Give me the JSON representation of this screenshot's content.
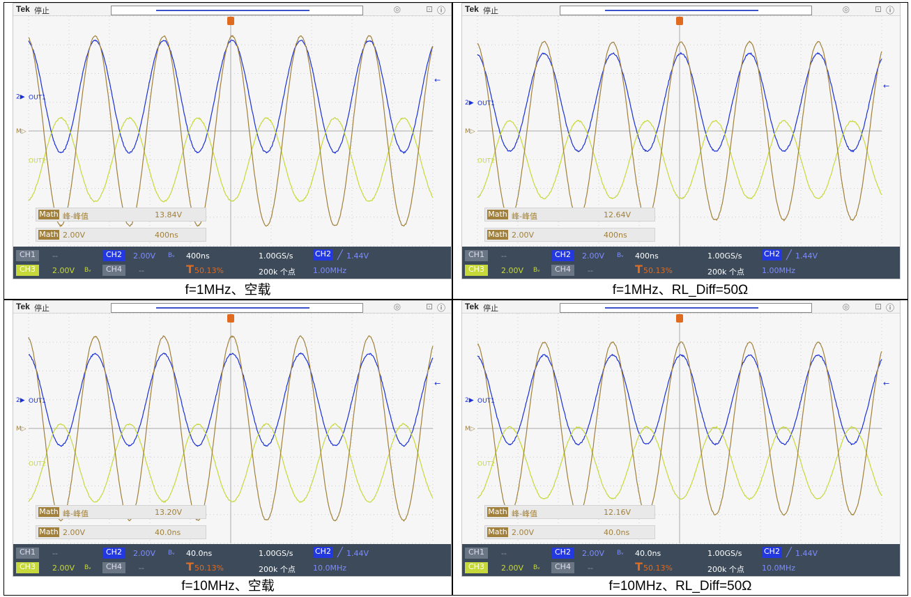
{
  "colors": {
    "ch2": "#1a2fd6",
    "ch3": "#c7d83a",
    "math": "#a0803a",
    "trigger": "#e06b1f"
  },
  "panels": [
    {
      "caption": "f=1MHz、空载",
      "header": {
        "brand": "Tek",
        "state": "停止"
      },
      "math_measure": {
        "tag": "Math",
        "name": "峰-峰值",
        "value": "13.84V"
      },
      "math_scale": {
        "tag": "Math",
        "volt": "2.00V",
        "time": "400ns"
      },
      "status": {
        "ch1": "CH1",
        "ch1_val": "--",
        "ch2": "CH2",
        "ch2_val": "2.00V",
        "bw": "Bᵥ",
        "ch3": "CH3",
        "ch3_val": "2.00V",
        "ch3_bw": "Bᵥ",
        "ch4": "CH4",
        "ch4_val": "--",
        "timebase": "400ns",
        "sample_rate": "1.00GS/s",
        "trig_ch": "CH2",
        "trig_level": "1.44V",
        "trig_pos": "50.13%",
        "record": "200k 个点",
        "freq": "1.00MHz"
      },
      "labels": {
        "out1": "OUT1",
        "out2": "OUT2",
        "ch2_marker": "2",
        "m_marker": "M"
      },
      "chart_data": {
        "type": "line",
        "xlabel": "",
        "ylabel": "",
        "x_range_div": [
          0,
          10
        ],
        "y_range_div": [
          -4,
          4
        ],
        "grid": true,
        "series": [
          {
            "name": "OUT1",
            "cycles": 5.9,
            "amplitude_div": 1.95,
            "offset_div": 1.2,
            "phase_deg": 100
          },
          {
            "name": "OUT2",
            "cycles": 5.9,
            "amplitude_div": 1.45,
            "offset_div": -1.0,
            "phase_deg": -80
          },
          {
            "name": "Math",
            "cycles": 5.9,
            "amplitude_div": 3.3,
            "offset_div": 0.0,
            "phase_deg": 100
          }
        ],
        "measurement": {
          "type": "peak-to-peak",
          "value": 13.84,
          "unit": "V"
        }
      }
    },
    {
      "caption": "f=1MHz、RL_Diff=50Ω",
      "header": {
        "brand": "Tek",
        "state": "停止"
      },
      "math_measure": {
        "tag": "Math",
        "name": "峰-峰值",
        "value": "12.64V"
      },
      "math_scale": {
        "tag": "Math",
        "volt": "2.00V",
        "time": "400ns"
      },
      "status": {
        "ch1": "CH1",
        "ch1_val": "--",
        "ch2": "CH2",
        "ch2_val": "2.00V",
        "bw": "Bᵥ",
        "ch3": "CH3",
        "ch3_val": "2.00V",
        "ch3_bw": "Bᵥ",
        "ch4": "CH4",
        "ch4_val": "--",
        "timebase": "400ns",
        "sample_rate": "1.00GS/s",
        "trig_ch": "CH2",
        "trig_level": "1.44V",
        "trig_pos": "50.13%",
        "record": "200k 个点",
        "freq": "1.00MHz"
      },
      "labels": {
        "out1": "OUT1",
        "out2": "OUT2",
        "ch2_marker": "2",
        "m_marker": "M"
      },
      "chart_data": {
        "type": "line",
        "xlabel": "",
        "ylabel": "",
        "x_range_div": [
          0,
          10
        ],
        "y_range_div": [
          -4,
          4
        ],
        "grid": true,
        "series": [
          {
            "name": "OUT1",
            "cycles": 5.9,
            "amplitude_div": 1.7,
            "offset_div": 1.0,
            "phase_deg": 100
          },
          {
            "name": "OUT2",
            "cycles": 5.9,
            "amplitude_div": 1.35,
            "offset_div": -1.0,
            "phase_deg": -80
          },
          {
            "name": "Math",
            "cycles": 5.9,
            "amplitude_div": 3.1,
            "offset_div": 0.0,
            "phase_deg": 100
          }
        ],
        "measurement": {
          "type": "peak-to-peak",
          "value": 12.64,
          "unit": "V"
        }
      }
    },
    {
      "caption": "f=10MHz、空载",
      "header": {
        "brand": "Tek",
        "state": "停止"
      },
      "math_measure": {
        "tag": "Math",
        "name": "峰-峰值",
        "value": "13.20V"
      },
      "math_scale": {
        "tag": "Math",
        "volt": "2.00V",
        "time": "40.0ns"
      },
      "status": {
        "ch1": "CH1",
        "ch1_val": "--",
        "ch2": "CH2",
        "ch2_val": "2.00V",
        "bw": "Bᵥ",
        "ch3": "CH3",
        "ch3_val": "2.00V",
        "ch3_bw": "Bᵥ",
        "ch4": "CH4",
        "ch4_val": "--",
        "timebase": "40.0ns",
        "sample_rate": "1.00GS/s",
        "trig_ch": "CH2",
        "trig_level": "1.44V",
        "trig_pos": "50.13%",
        "record": "200k 个点",
        "freq": "10.0MHz"
      },
      "labels": {
        "out1": "OUT1",
        "out2": "OUT2",
        "ch2_marker": "2",
        "m_marker": "M"
      },
      "chart_data": {
        "type": "line",
        "xlabel": "",
        "ylabel": "",
        "x_range_div": [
          0,
          10
        ],
        "y_range_div": [
          -4,
          4
        ],
        "grid": true,
        "series": [
          {
            "name": "OUT1",
            "cycles": 5.9,
            "amplitude_div": 1.6,
            "offset_div": 1.0,
            "phase_deg": 100
          },
          {
            "name": "OUT2",
            "cycles": 5.9,
            "amplitude_div": 1.35,
            "offset_div": -1.2,
            "phase_deg": -80
          },
          {
            "name": "Math",
            "cycles": 5.9,
            "amplitude_div": 3.2,
            "offset_div": 0.0,
            "phase_deg": 100
          }
        ],
        "measurement": {
          "type": "peak-to-peak",
          "value": 13.2,
          "unit": "V"
        }
      }
    },
    {
      "caption": "f=10MHz、RL_Diff=50Ω",
      "header": {
        "brand": "Tek",
        "state": "停止"
      },
      "math_measure": {
        "tag": "Math",
        "name": "峰-峰值",
        "value": "12.16V"
      },
      "math_scale": {
        "tag": "Math",
        "volt": "2.00V",
        "time": "40.0ns"
      },
      "status": {
        "ch1": "CH1",
        "ch1_val": "--",
        "ch2": "CH2",
        "ch2_val": "2.00V",
        "bw": "Bᵥ",
        "ch3": "CH3",
        "ch3_val": "2.00V",
        "ch3_bw": "Bᵥ",
        "ch4": "CH4",
        "ch4_val": "--",
        "timebase": "40.0ns",
        "sample_rate": "1.00GS/s",
        "trig_ch": "CH2",
        "trig_level": "1.44V",
        "trig_pos": "50.13%",
        "record": "200k 个点",
        "freq": "10.0MHz"
      },
      "labels": {
        "out1": "OUT1",
        "out2": "OUT2",
        "ch2_marker": "2",
        "m_marker": "M"
      },
      "chart_data": {
        "type": "line",
        "xlabel": "",
        "ylabel": "",
        "x_range_div": [
          0,
          10
        ],
        "y_range_div": [
          -4,
          4
        ],
        "grid": true,
        "series": [
          {
            "name": "OUT1",
            "cycles": 5.9,
            "amplitude_div": 1.55,
            "offset_div": 1.0,
            "phase_deg": 100
          },
          {
            "name": "OUT2",
            "cycles": 5.9,
            "amplitude_div": 1.25,
            "offset_div": -1.2,
            "phase_deg": -80
          },
          {
            "name": "Math",
            "cycles": 5.9,
            "amplitude_div": 3.0,
            "offset_div": 0.0,
            "phase_deg": 100
          }
        ],
        "measurement": {
          "type": "peak-to-peak",
          "value": 12.16,
          "unit": "V"
        }
      }
    }
  ]
}
